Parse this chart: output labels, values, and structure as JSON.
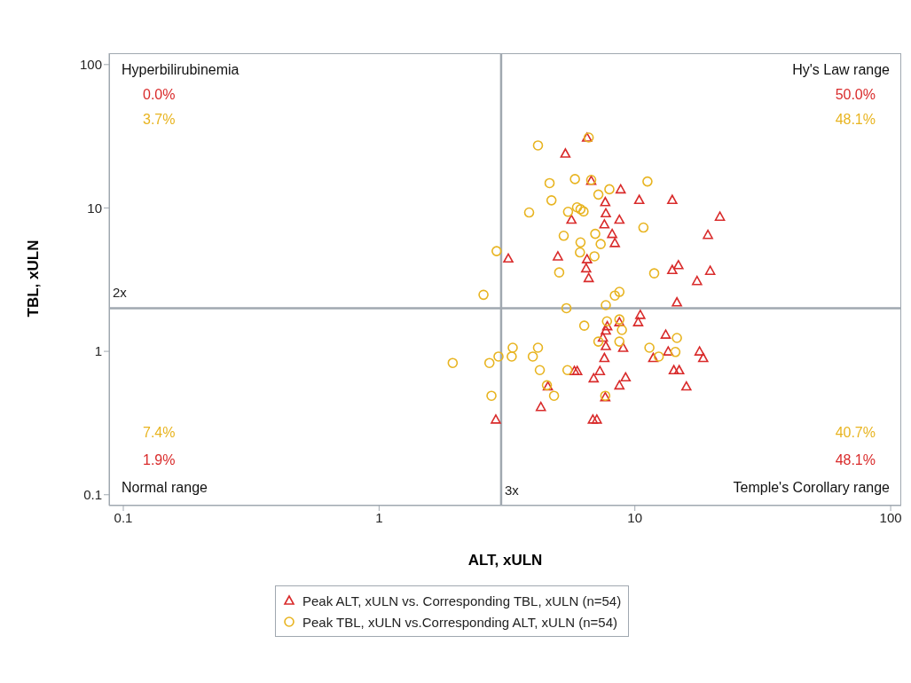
{
  "chart_data": {
    "type": "scatter",
    "xlabel": "ALT, xULN",
    "ylabel": "TBL, xULN",
    "log": "xy",
    "legend": "bottom",
    "xlim": [
      0.088,
      110
    ],
    "ylim": [
      0.084,
      120
    ],
    "xticks": [
      0.1,
      1,
      10,
      100
    ],
    "yticks": [
      0.1,
      1,
      10,
      100
    ],
    "ref_lines": [
      {
        "axis": "x",
        "value": 3,
        "label": "3x",
        "color": "#a0a8b0"
      },
      {
        "axis": "y",
        "value": 2,
        "label": "2x",
        "color": "#a0a8b0"
      }
    ],
    "annotations": [
      "Hyperbilirubinemia",
      "0.0%",
      "3.7%",
      "Hy's Law range",
      "50.0%",
      "48.1%",
      "7.4%",
      "1.9%",
      "Normal range",
      "40.7%",
      "48.1%",
      "Temple's Corollary range"
    ],
    "series": [
      {
        "name": "Peak ALT, xULN vs. Corresponding TBL, xULN (n=54)",
        "color": "#d92b2b",
        "marker": "triangle",
        "x": [
          6.5,
          5.35,
          6.75,
          8.8,
          10.4,
          14.0,
          21.5,
          7.66,
          7.7,
          5.65,
          8.7,
          7.6,
          8.15,
          19.3,
          8.35,
          14.8,
          3.2,
          5.0,
          6.5,
          6.45,
          6.6,
          14.0,
          19.7,
          17.5,
          14.6,
          10.5,
          10.3,
          8.7,
          7.8,
          7.7,
          7.5,
          7.7,
          9.0,
          13.2,
          13.5,
          17.9,
          18.5,
          11.8,
          7.6,
          5.8,
          5.95,
          7.3,
          6.9,
          9.2,
          8.7,
          14.2,
          14.9,
          15.9,
          4.57,
          4.29,
          2.86,
          6.85,
          7.1,
          7.66
        ],
        "values": [
          31,
          24,
          15.5,
          13.5,
          11.4,
          11.4,
          8.7,
          11.0,
          9.2,
          8.3,
          8.3,
          7.7,
          6.6,
          6.5,
          5.7,
          4.0,
          4.45,
          4.6,
          4.4,
          3.8,
          3.25,
          3.7,
          3.65,
          3.1,
          2.2,
          1.8,
          1.6,
          1.6,
          1.5,
          1.4,
          1.25,
          1.09,
          1.06,
          1.31,
          1.0,
          1.0,
          0.9,
          0.9,
          0.9,
          0.73,
          0.73,
          0.73,
          0.65,
          0.66,
          0.58,
          0.74,
          0.74,
          0.57,
          0.57,
          0.41,
          0.335,
          0.335,
          0.335,
          0.48
        ]
      },
      {
        "name": "Peak TBL, xULN vs.Corresponding ALT, xULN (n=54)",
        "color": "#e8b420",
        "marker": "circle",
        "x": [
          6.6,
          4.18,
          5.83,
          4.64,
          6.75,
          11.2,
          7.95,
          7.2,
          4.72,
          3.86,
          5.48,
          5.94,
          6.13,
          6.3,
          10.8,
          5.27,
          7.0,
          6.13,
          7.35,
          6.1,
          6.95,
          5.06,
          2.88,
          11.9,
          8.7,
          8.35,
          2.56,
          7.7,
          5.4,
          7.78,
          8.7,
          6.34,
          8.9,
          7.2,
          8.7,
          11.4,
          14.6,
          14.4,
          12.4,
          3.33,
          4.18,
          2.93,
          3.3,
          3.99,
          2.7,
          1.94,
          4.25,
          5.45,
          4.53,
          4.83,
          2.75,
          7.66
        ],
        "values": [
          31,
          27.3,
          15.9,
          14.9,
          15.7,
          15.3,
          13.5,
          12.4,
          11.3,
          9.3,
          9.4,
          10.1,
          9.8,
          9.45,
          7.3,
          6.4,
          6.6,
          5.75,
          5.6,
          4.9,
          4.6,
          3.55,
          5.0,
          3.5,
          2.6,
          2.45,
          2.48,
          2.1,
          2.0,
          1.62,
          1.67,
          1.51,
          1.41,
          1.17,
          1.17,
          1.06,
          1.24,
          0.99,
          0.92,
          1.06,
          1.06,
          0.92,
          0.92,
          0.92,
          0.83,
          0.83,
          0.74,
          0.74,
          0.58,
          0.49,
          0.49,
          0.49
        ]
      }
    ]
  }
}
